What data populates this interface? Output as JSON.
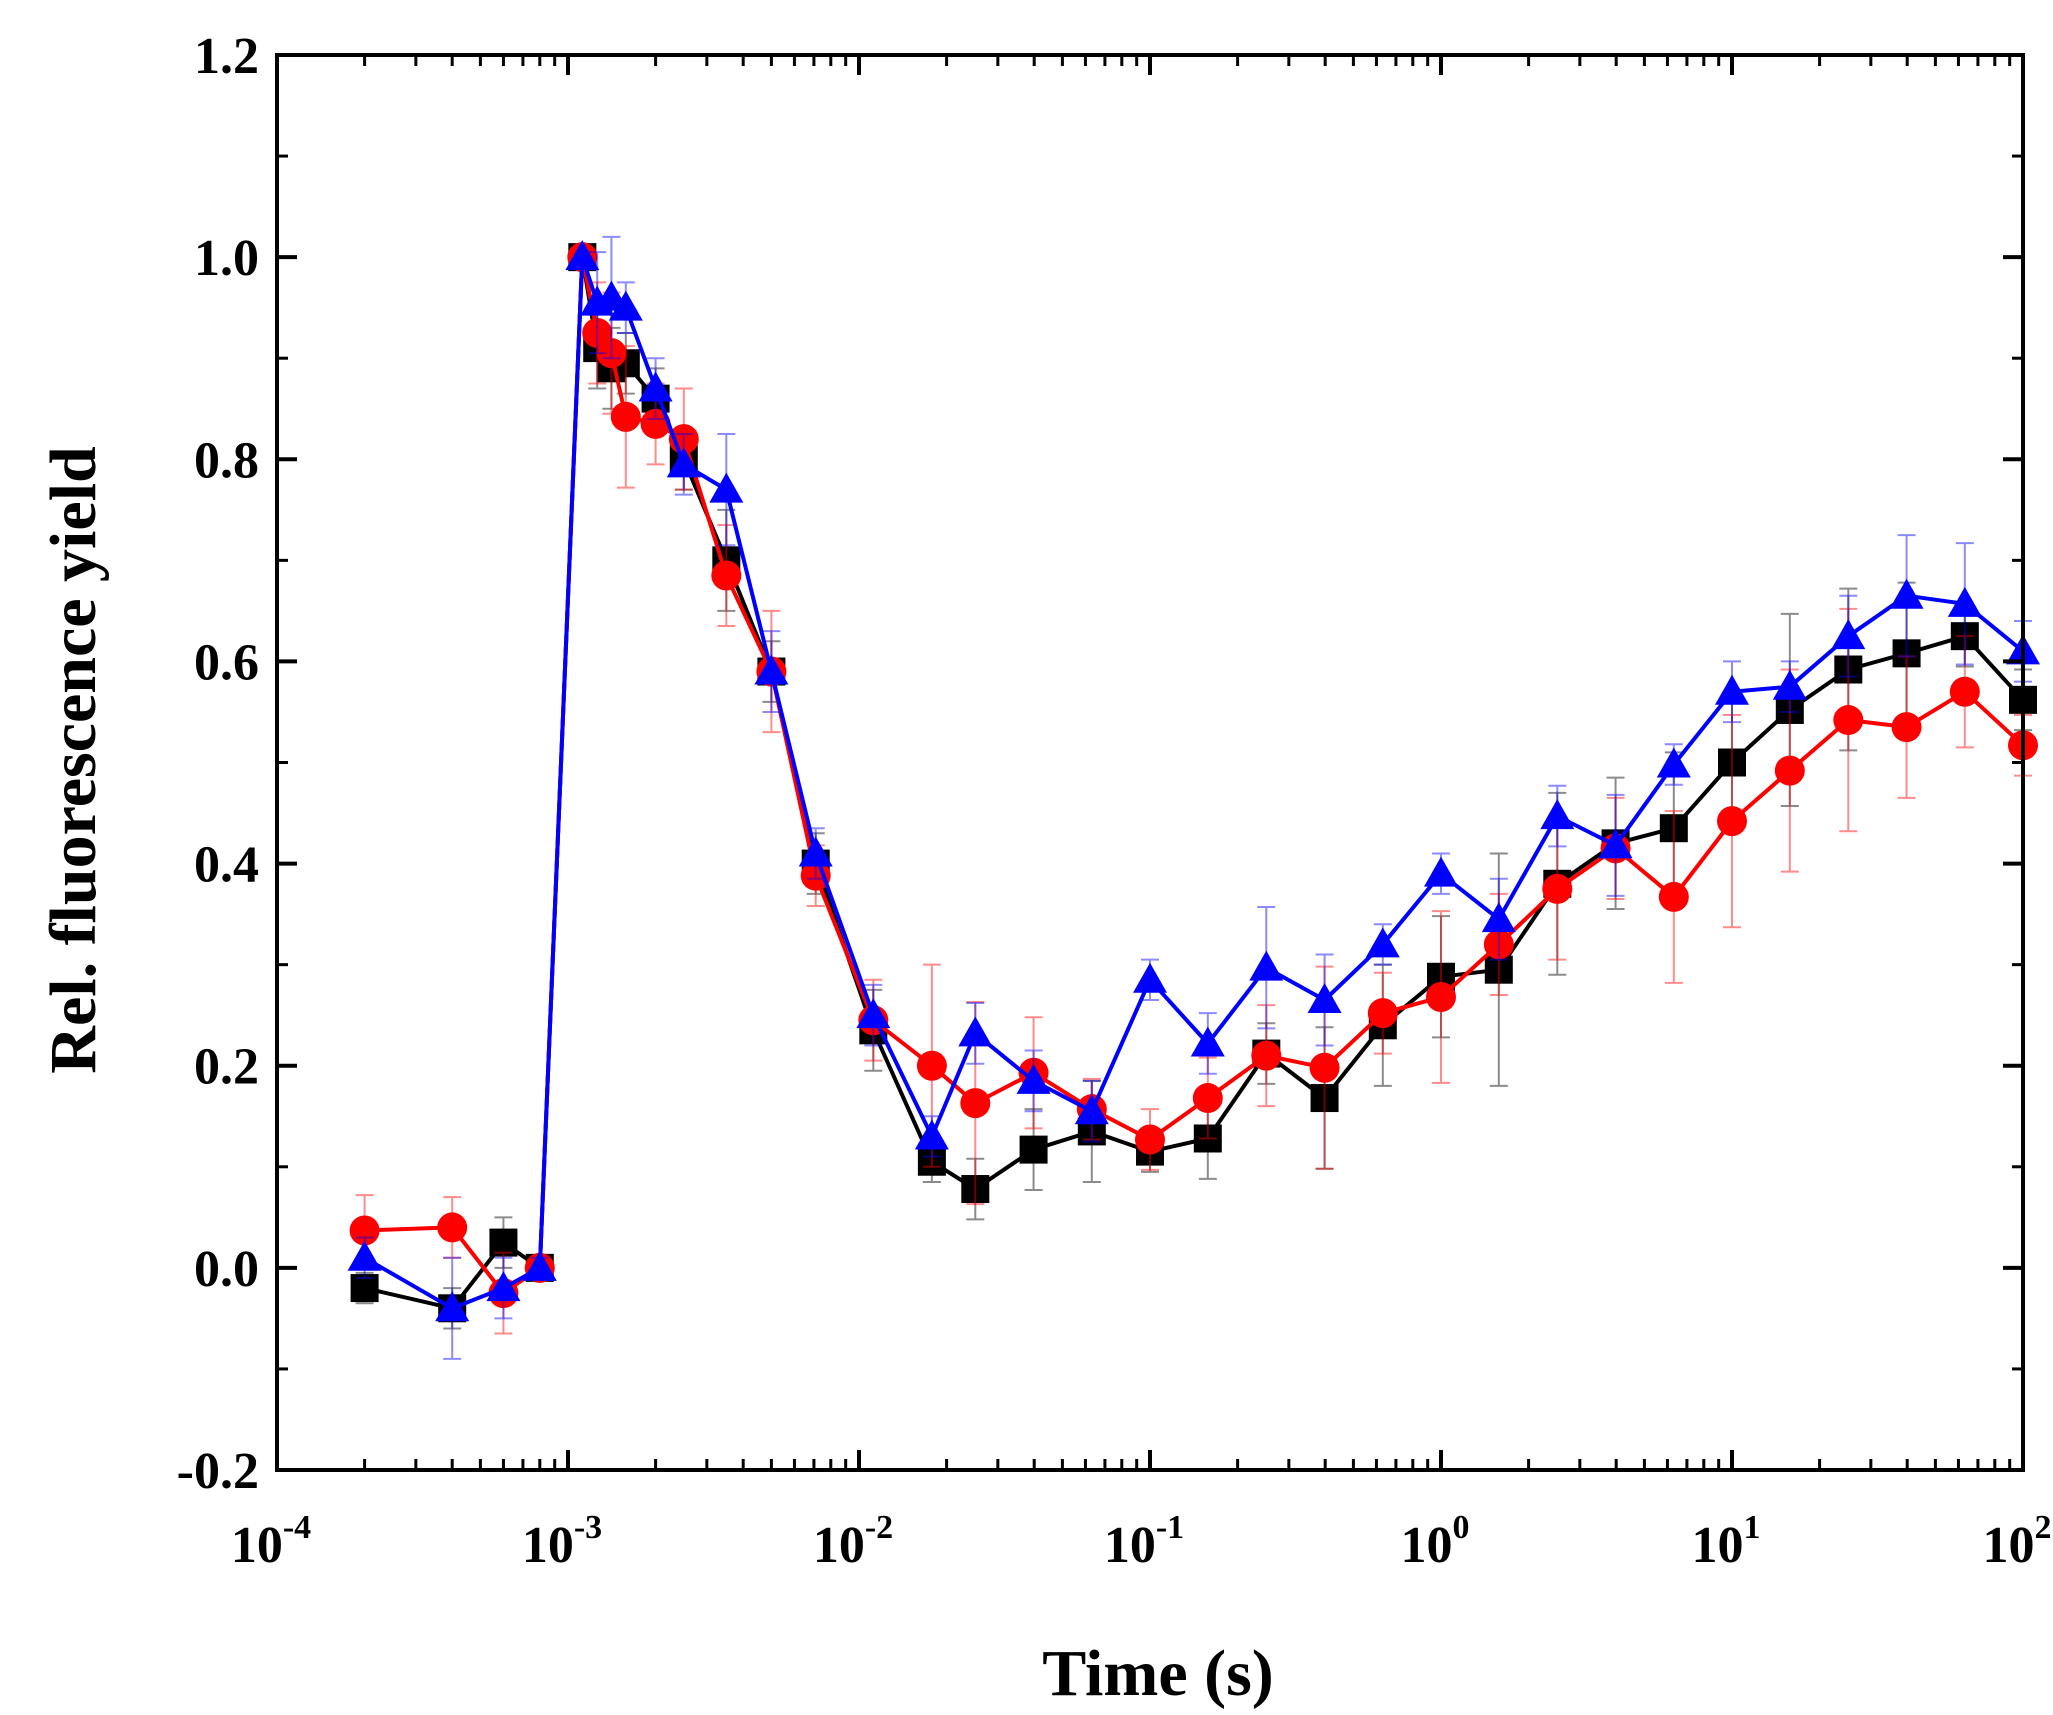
{
  "chart_data": {
    "type": "line",
    "title": "",
    "xlabel": "Time (s)",
    "ylabel": "Rel. fluorescence yield",
    "xscale": "log",
    "xlim": [
      0.0001,
      100
    ],
    "ylim": [
      -0.2,
      1.2
    ],
    "x_ticks": [
      {
        "value": 0.0001,
        "base": "10",
        "exp": "-4"
      },
      {
        "value": 0.001,
        "base": "10",
        "exp": "-3"
      },
      {
        "value": 0.01,
        "base": "10",
        "exp": "-2"
      },
      {
        "value": 0.1,
        "base": "10",
        "exp": "-1"
      },
      {
        "value": 1,
        "base": "10",
        "exp": "0"
      },
      {
        "value": 10,
        "base": "10",
        "exp": "1"
      },
      {
        "value": 100,
        "base": "10",
        "exp": "2"
      }
    ],
    "y_ticks": [
      {
        "value": -0.2,
        "label": "-0.2"
      },
      {
        "value": 0.0,
        "label": "0.0"
      },
      {
        "value": 0.2,
        "label": "0.2"
      },
      {
        "value": 0.4,
        "label": "0.4"
      },
      {
        "value": 0.6,
        "label": "0.6"
      },
      {
        "value": 0.8,
        "label": "0.8"
      },
      {
        "value": 1.0,
        "label": "1.0"
      },
      {
        "value": 1.2,
        "label": "1.2"
      }
    ],
    "series": [
      {
        "name": "black-squares",
        "color": "#000000",
        "marker": "square",
        "x": [
          0.0002,
          0.0004,
          0.0006,
          0.0008,
          0.00112,
          0.00126,
          0.00141,
          0.00158,
          0.002,
          0.0025,
          0.0035,
          0.005,
          0.0071,
          0.0112,
          0.0178,
          0.0251,
          0.0398,
          0.0631,
          0.1,
          0.158,
          0.251,
          0.398,
          0.631,
          1,
          1.58,
          2.51,
          3.98,
          6.31,
          10,
          15.8,
          25.1,
          39.8,
          63.1,
          100
        ],
        "y": [
          -0.02,
          -0.04,
          0.025,
          0.0,
          1.0,
          0.91,
          0.89,
          0.895,
          0.86,
          0.8,
          0.7,
          0.59,
          0.4,
          0.235,
          0.105,
          0.078,
          0.117,
          0.135,
          0.115,
          0.128,
          0.212,
          0.168,
          0.24,
          0.288,
          0.295,
          0.38,
          0.42,
          0.435,
          0.5,
          0.552,
          0.592,
          0.608,
          0.625,
          0.562
        ],
        "err": [
          0.015,
          0.02,
          0.025,
          0.01,
          0.0,
          0.04,
          0.04,
          0.03,
          0.03,
          0.03,
          0.05,
          0.03,
          0.03,
          0.04,
          0.02,
          0.03,
          0.04,
          0.05,
          0.02,
          0.04,
          0.03,
          0.07,
          0.06,
          0.06,
          0.115,
          0.09,
          0.065,
          0.075,
          0.06,
          0.095,
          0.08,
          0.07,
          0.03,
          0.03
        ]
      },
      {
        "name": "red-circles",
        "color": "#ff0000",
        "marker": "circle",
        "x": [
          0.0002,
          0.0004,
          0.0006,
          0.0008,
          0.00112,
          0.00126,
          0.00141,
          0.00158,
          0.002,
          0.0025,
          0.0035,
          0.005,
          0.0071,
          0.0112,
          0.0178,
          0.0251,
          0.0398,
          0.0631,
          0.1,
          0.158,
          0.251,
          0.398,
          0.631,
          1,
          1.58,
          2.51,
          3.98,
          6.31,
          10,
          15.8,
          25.1,
          39.8,
          63.1,
          100
        ],
        "y": [
          0.037,
          0.04,
          -0.025,
          0.0,
          1.0,
          0.925,
          0.905,
          0.842,
          0.835,
          0.82,
          0.685,
          0.59,
          0.388,
          0.245,
          0.2,
          0.163,
          0.193,
          0.157,
          0.127,
          0.168,
          0.21,
          0.198,
          0.252,
          0.268,
          0.32,
          0.375,
          0.415,
          0.367,
          0.442,
          0.492,
          0.542,
          0.535,
          0.57,
          0.517
        ],
        "err": [
          0.035,
          0.03,
          0.04,
          0.01,
          0.0,
          0.05,
          0.06,
          0.07,
          0.04,
          0.05,
          0.05,
          0.06,
          0.03,
          0.04,
          0.1,
          0.1,
          0.055,
          0.03,
          0.03,
          0.04,
          0.05,
          0.1,
          0.04,
          0.085,
          0.05,
          0.07,
          0.05,
          0.085,
          0.105,
          0.1,
          0.11,
          0.07,
          0.055,
          0.03
        ]
      },
      {
        "name": "blue-triangles",
        "color": "#0000ff",
        "marker": "triangle",
        "x": [
          0.0002,
          0.0004,
          0.0006,
          0.0008,
          0.00112,
          0.00126,
          0.00141,
          0.00158,
          0.002,
          0.0025,
          0.0035,
          0.005,
          0.0071,
          0.0112,
          0.0178,
          0.0251,
          0.0398,
          0.0631,
          0.1,
          0.158,
          0.251,
          0.398,
          0.631,
          1,
          1.58,
          2.51,
          3.98,
          6.31,
          10,
          15.8,
          25.1,
          39.8,
          63.1,
          100
        ],
        "y": [
          0.01,
          -0.04,
          -0.02,
          0.0,
          1.0,
          0.955,
          0.96,
          0.95,
          0.87,
          0.795,
          0.77,
          0.59,
          0.41,
          0.25,
          0.13,
          0.232,
          0.185,
          0.155,
          0.285,
          0.222,
          0.297,
          0.265,
          0.32,
          0.39,
          0.345,
          0.447,
          0.418,
          0.498,
          0.57,
          0.575,
          0.625,
          0.665,
          0.657,
          0.61
        ],
        "err": [
          0.02,
          0.05,
          0.03,
          0.01,
          0.0,
          0.05,
          0.06,
          0.025,
          0.03,
          0.03,
          0.055,
          0.04,
          0.025,
          0.03,
          0.02,
          0.03,
          0.03,
          0.03,
          0.02,
          0.03,
          0.06,
          0.045,
          0.02,
          0.02,
          0.04,
          0.03,
          0.05,
          0.02,
          0.03,
          0.025,
          0.04,
          0.06,
          0.06,
          0.03
        ]
      }
    ]
  }
}
